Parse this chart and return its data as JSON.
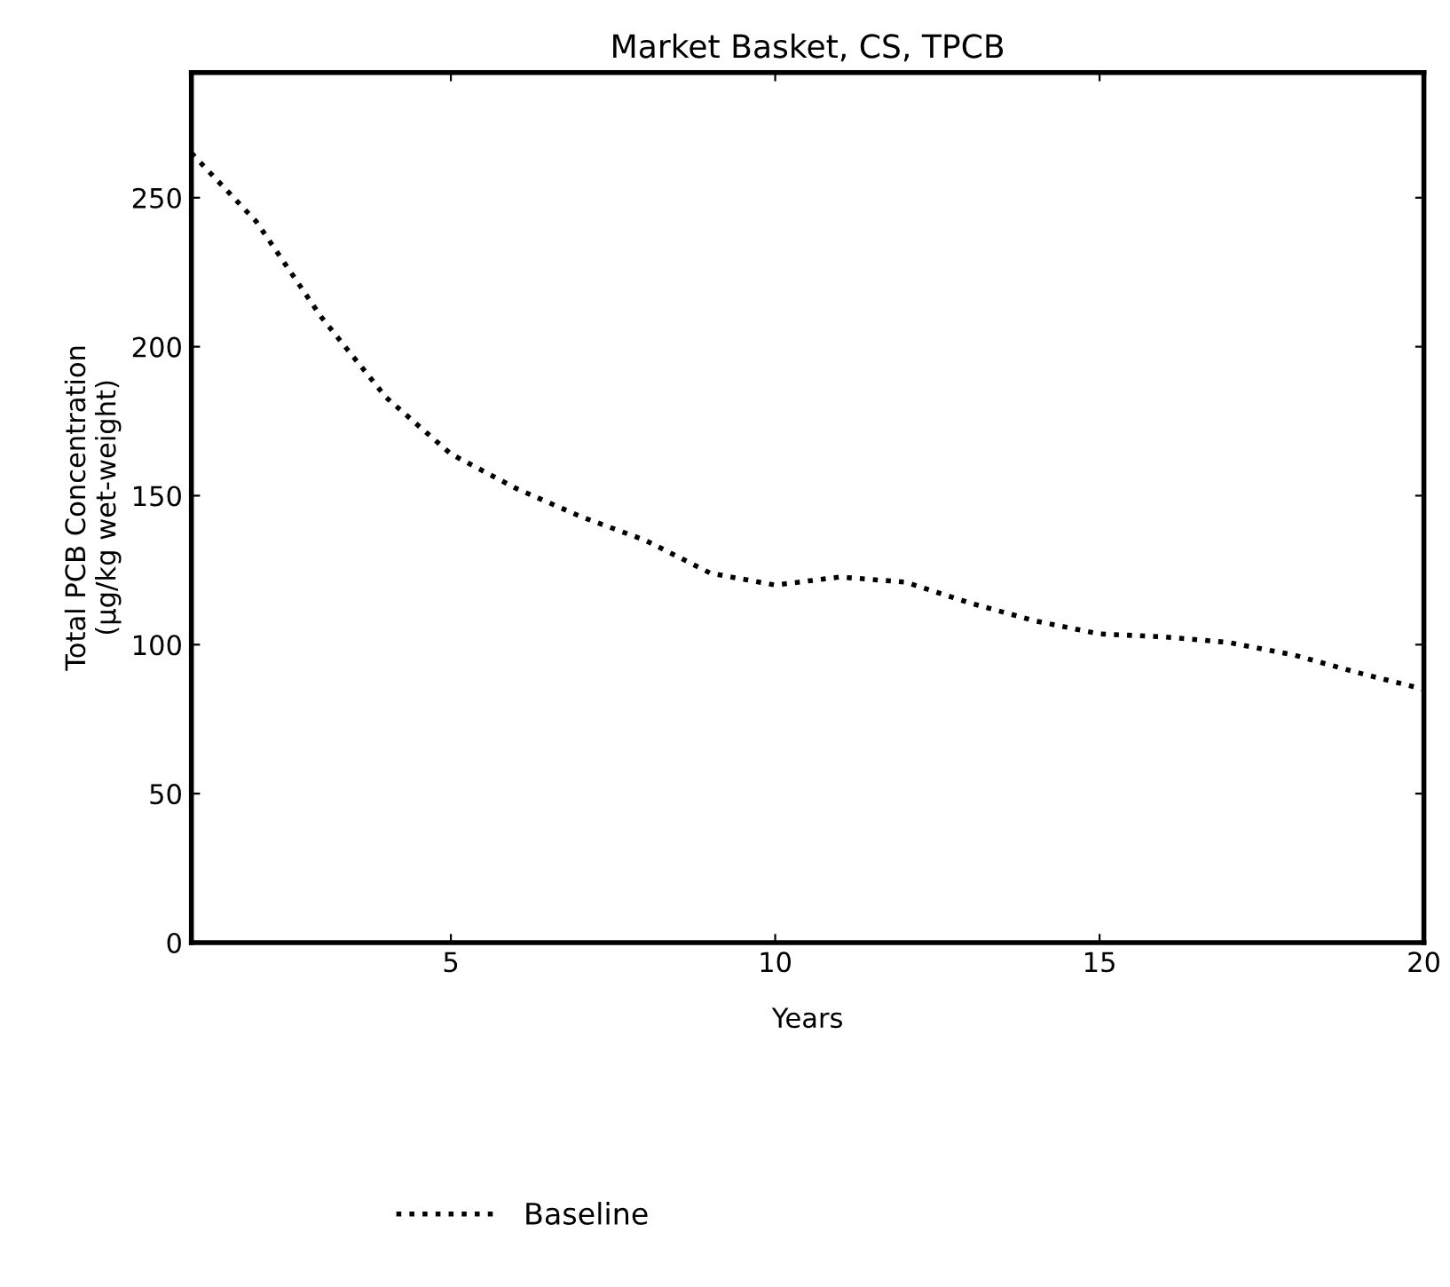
{
  "chart_data": {
    "type": "line",
    "title": "Market Basket, CS, TPCB",
    "xlabel": "Years",
    "ylabel": "Total PCB Concentration\n(µg/kg wet-weight)",
    "x": [
      1,
      2,
      3,
      4,
      5,
      6,
      7,
      8,
      9,
      10,
      11,
      12,
      13,
      14,
      15,
      16,
      17,
      18,
      19,
      20
    ],
    "series": [
      {
        "name": "Baseline",
        "color": "#000000",
        "values": [
          265,
          242,
          210,
          183,
          164,
          152.5,
          143,
          135,
          124,
          120,
          122.7,
          121,
          114,
          108,
          103.6,
          102.6,
          100.7,
          96.5,
          90.5,
          85
        ]
      }
    ],
    "xlim": [
      1,
      20
    ],
    "xticks": [
      5,
      10,
      15,
      20
    ],
    "ylim": [
      0,
      292
    ],
    "yticks": [
      0,
      50,
      100,
      150,
      200,
      250
    ],
    "grid": false,
    "legend": "bottom",
    "line_style": "dotted",
    "marker": "none"
  }
}
